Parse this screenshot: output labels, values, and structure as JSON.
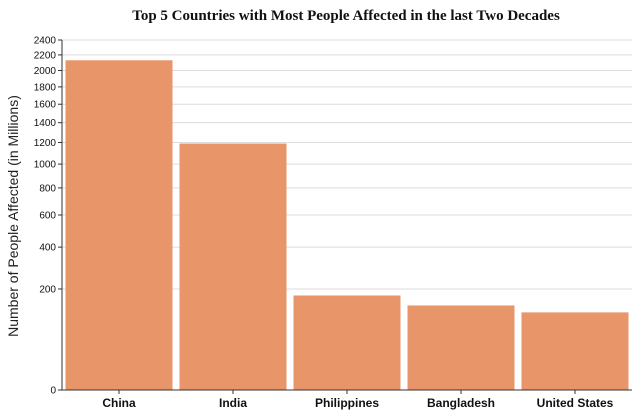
{
  "chart_data": {
    "type": "bar",
    "title": "Top 5 Countries with Most People Affected in the last Two Decades",
    "ylabel": "Number of People Affected (in Millions)",
    "xlabel": "",
    "scale": "sqrt",
    "categories": [
      "China",
      "India",
      "Philippines",
      "Bangladesh",
      "United States"
    ],
    "values": [
      2130,
      1190,
      175,
      140,
      118
    ],
    "yticks": [
      0,
      200,
      400,
      600,
      800,
      1000,
      1200,
      1400,
      1600,
      1800,
      2000,
      2200,
      2400
    ],
    "ylim": [
      0,
      2400
    ],
    "grid": true,
    "legend": "none",
    "bar_color": "#e8956a"
  }
}
